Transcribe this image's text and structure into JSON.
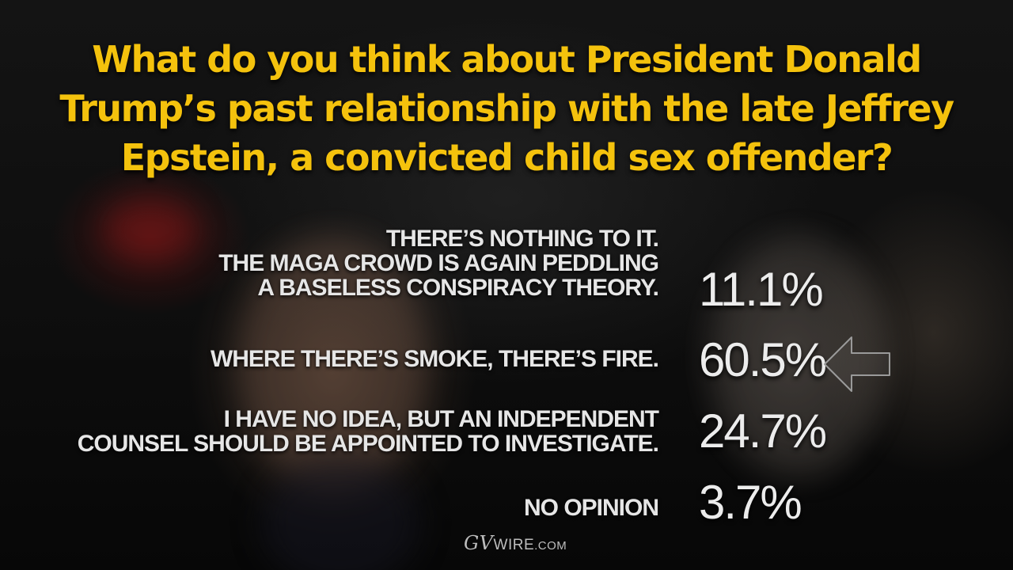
{
  "question": {
    "line1": "What do you think about President Donald",
    "line2": "Trump’s past relationship with the late Jeffrey",
    "line3": "Epstein, a convicted child sex offender?"
  },
  "answers": [
    {
      "lines": [
        "There’s nothing to it.",
        "The MAGA crowd is again peddling",
        "a baseless conspiracy theory."
      ],
      "percent": "11.1%"
    },
    {
      "lines": [
        "Where there’s smoke, there’s fire."
      ],
      "percent": "60.5%"
    },
    {
      "lines": [
        "I have no idea, but an independent",
        "counsel should be appointed to investigate."
      ],
      "percent": "24.7%"
    },
    {
      "lines": [
        "No opinion"
      ],
      "percent": "3.7%"
    }
  ],
  "highlight": {
    "icon": "left-arrow-icon",
    "answer_index": 1
  },
  "logo": {
    "mark": "GV",
    "word": "WIRE",
    "suffix": ".COM"
  },
  "colors": {
    "question": "#f4c20d",
    "answer_text": "#e6e6e6",
    "background": "#0b0b0b"
  }
}
